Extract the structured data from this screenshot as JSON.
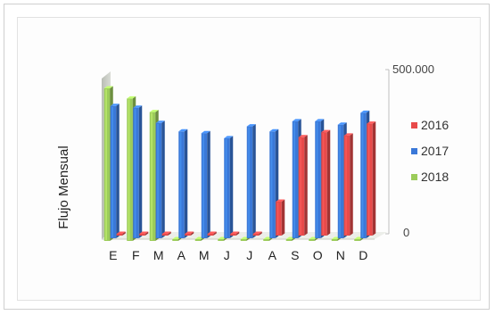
{
  "chart_data": {
    "type": "bar",
    "title": "",
    "xlabel": "",
    "ylabel": "Flujo Mensual",
    "ylim": [
      0,
      500000
    ],
    "ytick_labels": [
      "500.000",
      "0"
    ],
    "categories": [
      "E",
      "F",
      "M",
      "A",
      "M",
      "J",
      "J",
      "A",
      "S",
      "O",
      "N",
      "D"
    ],
    "series": [
      {
        "name": "2016",
        "color": "#e84a4a",
        "values": [
          0,
          0,
          0,
          0,
          0,
          0,
          0,
          100000,
          290000,
          305000,
          295000,
          330000
        ]
      },
      {
        "name": "2017",
        "color": "#3a78d8",
        "values": [
          390000,
          385000,
          340000,
          315000,
          310000,
          295000,
          330000,
          315000,
          345000,
          345000,
          335000,
          370000
        ]
      },
      {
        "name": "2018",
        "color": "#9ccc5a",
        "values": [
          450000,
          420000,
          380000,
          0,
          0,
          0,
          0,
          0,
          0,
          0,
          0,
          0
        ]
      }
    ],
    "legend_position": "right",
    "grid": false,
    "style": "3d"
  }
}
